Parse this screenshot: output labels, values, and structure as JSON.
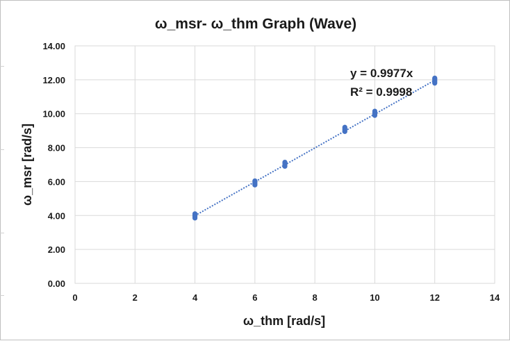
{
  "chart_data": {
    "type": "scatter",
    "title": "ω_msr- ω_thm Graph (Wave)",
    "xlabel": "ω_thm [rad/s]",
    "ylabel": "ω_msr [rad/s]",
    "xlim": [
      0,
      14
    ],
    "ylim": [
      0,
      14
    ],
    "x_ticks": [
      0,
      2,
      4,
      6,
      8,
      10,
      12,
      14
    ],
    "y_ticks": [
      0,
      2,
      4,
      6,
      8,
      10,
      12,
      14
    ],
    "x_tick_labels": [
      "0",
      "2",
      "4",
      "6",
      "8",
      "10",
      "12",
      "14"
    ],
    "y_tick_labels": [
      "0.00",
      "2.00",
      "4.00",
      "6.00",
      "8.00",
      "10.00",
      "12.00",
      "14.00"
    ],
    "grid": true,
    "legend": "none",
    "series": [
      {
        "color": "#4472c4",
        "points": [
          [
            4,
            3.85
          ],
          [
            4,
            3.92
          ],
          [
            4,
            3.98
          ],
          [
            4,
            4.04
          ],
          [
            4,
            4.1
          ],
          [
            6,
            5.8
          ],
          [
            6,
            5.86
          ],
          [
            6,
            5.92
          ],
          [
            6,
            5.98
          ],
          [
            6,
            6.04
          ],
          [
            7,
            6.9
          ],
          [
            7,
            6.96
          ],
          [
            7,
            7.02
          ],
          [
            7,
            7.08
          ],
          [
            7,
            7.14
          ],
          [
            9,
            8.95
          ],
          [
            9,
            9.01
          ],
          [
            9,
            9.07
          ],
          [
            9,
            9.13
          ],
          [
            9,
            9.2
          ],
          [
            10,
            9.9
          ],
          [
            10,
            9.96
          ],
          [
            10,
            10.02
          ],
          [
            10,
            10.08
          ],
          [
            10,
            10.15
          ],
          [
            12,
            11.8
          ],
          [
            12,
            11.86
          ],
          [
            12,
            11.92
          ],
          [
            12,
            11.98
          ],
          [
            12,
            12.05
          ],
          [
            12,
            12.1
          ]
        ]
      }
    ],
    "trendline": {
      "type": "linear",
      "slope": 0.9977,
      "x_range": [
        4,
        12
      ],
      "style": "dotted",
      "color": "#4472c4",
      "equation": "y = 0.9977x",
      "r_squared": "R² = 0.9998"
    }
  }
}
